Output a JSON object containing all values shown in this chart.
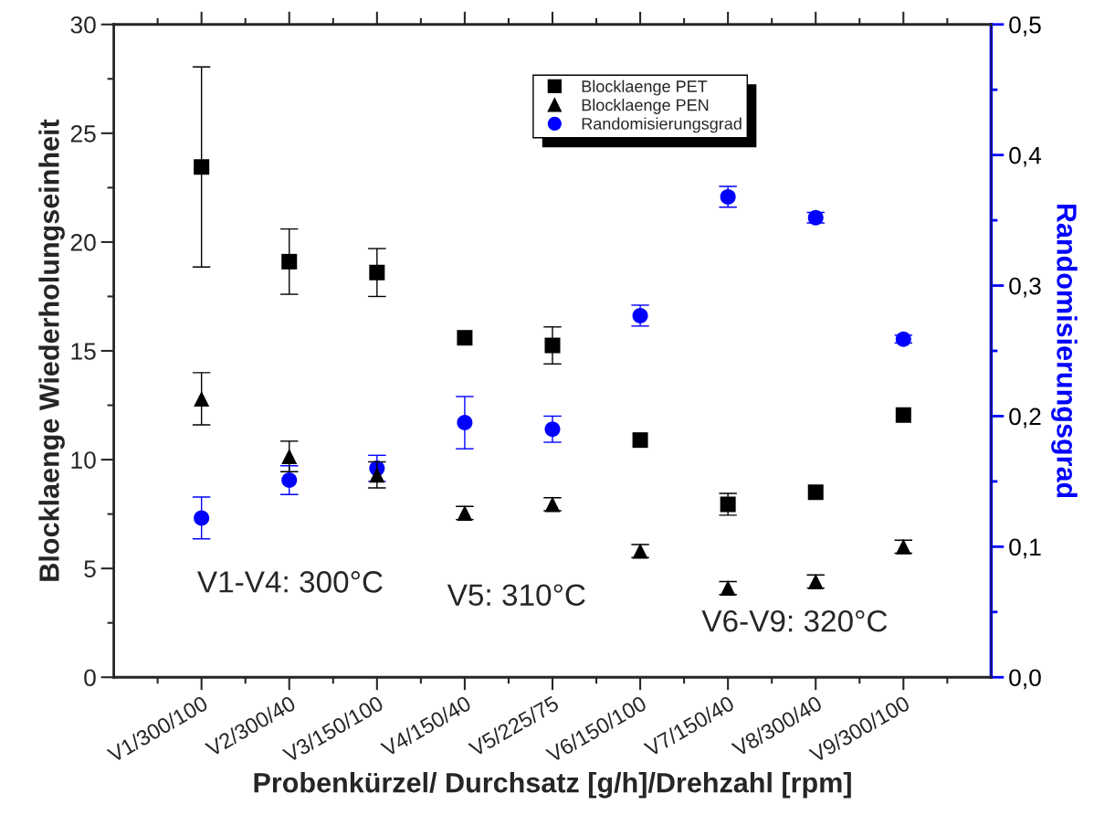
{
  "chart_data": {
    "type": "scatter",
    "xlabel": "Probenkürzel/ Durchsatz [g/h]/Drehzahl [rpm]",
    "ylabel": "Blocklaenge Wiederholungseinheit",
    "y2label": "Randomisierungsgrad",
    "categories": [
      "V1/300/100",
      "V2/300/40",
      "V3/150/100",
      "V4/150/40",
      "V5/225/75",
      "V6/150/100",
      "V7/150/40",
      "V8/300/40",
      "V9/300/100"
    ],
    "series": [
      {
        "name": "Blocklaenge PET",
        "color": "#000000",
        "marker": "square",
        "values": [
          23.45,
          19.1,
          18.6,
          15.6,
          15.25,
          10.9,
          7.95,
          8.5,
          12.05
        ],
        "errors": [
          4.6,
          1.5,
          1.1,
          null,
          0.85,
          null,
          0.5,
          null,
          null
        ]
      },
      {
        "name": "Blocklaenge PEN",
        "color": "#000000",
        "marker": "triangle",
        "values": [
          12.8,
          10.15,
          9.3,
          7.55,
          7.95,
          5.8,
          4.1,
          4.4,
          6.0
        ],
        "errors": [
          1.2,
          0.7,
          0.6,
          0.3,
          0.3,
          0.3,
          0.3,
          0.3,
          0.3
        ]
      },
      {
        "name": "Randomisierungsgrad",
        "color": "#0000ff",
        "marker": "circle",
        "axis": "y2",
        "values": [
          0.122,
          0.151,
          0.16,
          0.195,
          0.19,
          0.277,
          0.368,
          0.352,
          0.259
        ],
        "errors": [
          0.016,
          0.011,
          0.01,
          0.02,
          0.01,
          0.008,
          0.008,
          0.004,
          0.003
        ]
      }
    ],
    "ylim": [
      0,
      30
    ],
    "yticks": [
      0,
      5,
      10,
      15,
      20,
      25,
      30
    ],
    "y2lim": [
      0,
      0.5
    ],
    "y2ticks": [
      {
        "value": 0,
        "label": "0,0"
      },
      {
        "value": 0.1,
        "label": "0,1"
      },
      {
        "value": 0.2,
        "label": "0,2"
      },
      {
        "value": 0.3,
        "label": "0,3"
      },
      {
        "value": 0.4,
        "label": "0,4"
      },
      {
        "value": 0.5,
        "label": "0,5"
      }
    ],
    "annotations": [
      "V1-V4: 300°C",
      "V5: 310°C",
      "V6-V9: 320°C"
    ],
    "legend": "top",
    "grid": false
  }
}
